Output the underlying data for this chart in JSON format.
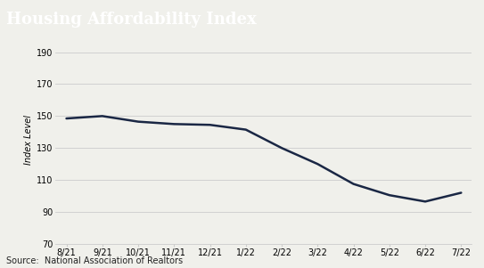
{
  "title": "Housing Affordability Index",
  "ylabel": "Index Level",
  "source": "Source:  National Association of Realtors",
  "x_labels": [
    "8/21",
    "9/21",
    "10/21",
    "11/21",
    "12/21",
    "1/22",
    "2/22",
    "3/22",
    "4/22",
    "5/22",
    "6/22",
    "7/22"
  ],
  "y_values": [
    148.5,
    150.0,
    146.5,
    145.0,
    144.5,
    141.5,
    130.0,
    120.0,
    107.5,
    100.5,
    96.5,
    102.0
  ],
  "ylim": [
    70,
    200
  ],
  "yticks": [
    70,
    90,
    110,
    130,
    150,
    170,
    190
  ],
  "line_color": "#1a2744",
  "line_width": 1.8,
  "title_bg_color": "#555555",
  "title_text_color": "#ffffff",
  "bg_color": "#f0f0eb",
  "grid_color": "#cccccc",
  "title_fontsize": 13,
  "label_fontsize": 7,
  "tick_fontsize": 7,
  "source_fontsize": 7
}
